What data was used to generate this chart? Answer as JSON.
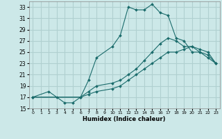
{
  "xlabel": "Humidex (Indice chaleur)",
  "bg_color": "#cce8e8",
  "grid_color": "#b0d0d0",
  "line_color": "#1a6b6b",
  "xlim": [
    -0.5,
    23.5
  ],
  "ylim": [
    15,
    34
  ],
  "xticks": [
    0,
    1,
    2,
    3,
    4,
    5,
    6,
    7,
    8,
    9,
    10,
    11,
    12,
    13,
    14,
    15,
    16,
    17,
    18,
    19,
    20,
    21,
    22,
    23
  ],
  "yticks": [
    15,
    17,
    19,
    21,
    23,
    25,
    27,
    29,
    31,
    33
  ],
  "line1_x": [
    0,
    2,
    3,
    4,
    5,
    6,
    7,
    8,
    10,
    11,
    12,
    13,
    14,
    15,
    16,
    17,
    18,
    19,
    20,
    21,
    22,
    23
  ],
  "line1_y": [
    17,
    18,
    17,
    16,
    16,
    17,
    20,
    24,
    26,
    28,
    33,
    32.5,
    32.5,
    33.5,
    32,
    31.5,
    27.5,
    27,
    25,
    25,
    24,
    23
  ],
  "line2_x": [
    0,
    6,
    7,
    8,
    10,
    11,
    12,
    13,
    14,
    15,
    16,
    17,
    18,
    19,
    20,
    21,
    22,
    23
  ],
  "line2_y": [
    17,
    17,
    18,
    19,
    19.5,
    20,
    21,
    22,
    23.5,
    25,
    26.5,
    27.5,
    27,
    26,
    26,
    25.5,
    25,
    23
  ],
  "line3_x": [
    0,
    6,
    7,
    8,
    10,
    11,
    12,
    13,
    14,
    15,
    16,
    17,
    18,
    19,
    20,
    21,
    22,
    23
  ],
  "line3_y": [
    17,
    17,
    17.5,
    18,
    18.5,
    19,
    20,
    21,
    22,
    23,
    24,
    25,
    25,
    25.5,
    26,
    25,
    24.5,
    23
  ]
}
